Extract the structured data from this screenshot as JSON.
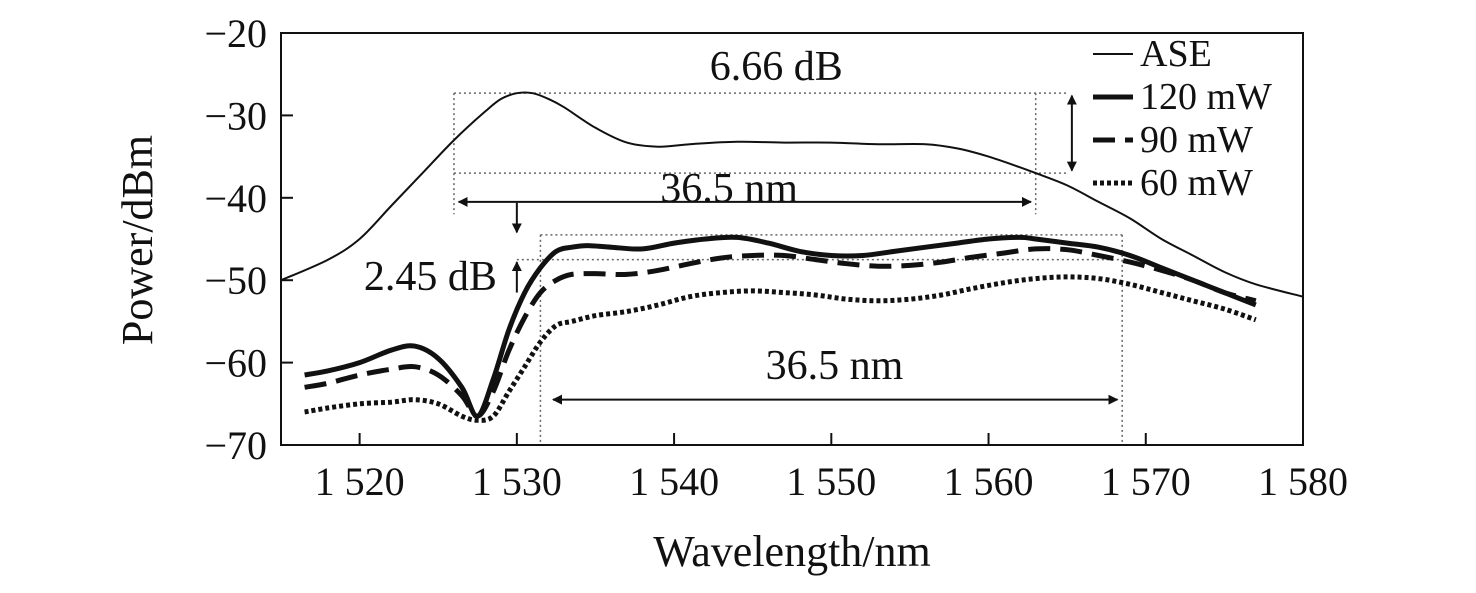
{
  "chart_data": {
    "type": "line",
    "title": "",
    "xlabel": "Wavelength/nm",
    "ylabel": "Power/dBm",
    "xlim": [
      1515,
      1580
    ],
    "ylim": [
      -70,
      -20
    ],
    "xticks": [
      1520,
      1530,
      1540,
      1550,
      1560,
      1570,
      1580
    ],
    "xtick_labels": [
      "1 520",
      "1 530",
      "1 540",
      "1 550",
      "1 560",
      "1 570",
      "1 580"
    ],
    "yticks": [
      -20,
      -30,
      -40,
      -50,
      -60,
      -70
    ],
    "ytick_labels": [
      "−20",
      "−30",
      "−40",
      "−50",
      "−60",
      "−70"
    ],
    "grid": false,
    "legend_position": "top-right",
    "series": [
      {
        "name": "ASE",
        "style": "thin-solid",
        "x": [
          1515,
          1518,
          1520,
          1522,
          1524,
          1526,
          1528,
          1529,
          1530,
          1531,
          1532,
          1533,
          1535,
          1537,
          1539,
          1541,
          1544,
          1547,
          1550,
          1553,
          1556,
          1558,
          1560,
          1562,
          1563,
          1565,
          1567,
          1569,
          1571,
          1573,
          1575,
          1577,
          1580
        ],
        "y": [
          -50,
          -47.5,
          -45,
          -41,
          -37,
          -33,
          -29.5,
          -28,
          -27.3,
          -27.3,
          -28,
          -29,
          -31.5,
          -33.3,
          -33.8,
          -33.5,
          -33.2,
          -33.3,
          -33.3,
          -33.5,
          -33.5,
          -34,
          -35,
          -36.3,
          -37,
          -38.5,
          -40.5,
          -42.5,
          -45,
          -47,
          -49,
          -50.5,
          -52
        ]
      },
      {
        "name": "120 mW",
        "style": "thick-solid",
        "x": [
          1516.5,
          1518,
          1520,
          1522,
          1523.5,
          1525,
          1526.5,
          1527.5,
          1528.5,
          1529.5,
          1530.5,
          1531.5,
          1532.5,
          1533.5,
          1534.5,
          1536,
          1538,
          1540,
          1542,
          1544,
          1546,
          1548,
          1550,
          1552,
          1554,
          1556,
          1558,
          1560,
          1562,
          1563,
          1565,
          1567,
          1569,
          1571,
          1573,
          1575,
          1577
        ],
        "y": [
          -61.5,
          -61,
          -60,
          -58.5,
          -58,
          -59.5,
          -63,
          -66.5,
          -62,
          -56,
          -51.5,
          -48.5,
          -46.5,
          -46,
          -45.8,
          -46,
          -46.2,
          -45.5,
          -45,
          -44.8,
          -45.5,
          -46.5,
          -47,
          -47,
          -46.5,
          -46,
          -45.5,
          -45,
          -44.8,
          -45,
          -45.5,
          -46,
          -47,
          -48.5,
          -50,
          -51.5,
          -53
        ]
      },
      {
        "name": "90 mW",
        "style": "thick-dashed",
        "x": [
          1516.5,
          1518,
          1520,
          1522,
          1523.5,
          1525,
          1526.5,
          1527.5,
          1528.5,
          1529.5,
          1530.5,
          1531.5,
          1532.5,
          1533.5,
          1535,
          1537,
          1539,
          1541,
          1543,
          1545,
          1547,
          1549,
          1551,
          1553,
          1555,
          1557,
          1559,
          1561,
          1563,
          1565,
          1567,
          1569,
          1571,
          1573,
          1575,
          1577
        ],
        "y": [
          -63,
          -62.5,
          -61.5,
          -60.8,
          -60.5,
          -61.5,
          -64,
          -66.5,
          -63.5,
          -58.5,
          -54.5,
          -51.5,
          -50,
          -49.3,
          -49.2,
          -49.3,
          -48.8,
          -48,
          -47.3,
          -47,
          -47,
          -47.5,
          -48,
          -48.3,
          -48.2,
          -47.8,
          -47.2,
          -46.7,
          -46.2,
          -46.3,
          -47,
          -47.8,
          -48.8,
          -50,
          -51.5,
          -52.5
        ]
      },
      {
        "name": "60 mW",
        "style": "dotted",
        "x": [
          1516.5,
          1518,
          1520,
          1522,
          1523.5,
          1525,
          1526.5,
          1527.5,
          1528.5,
          1529.5,
          1530.5,
          1531.5,
          1532.5,
          1533.5,
          1535,
          1537,
          1539,
          1541,
          1543,
          1545,
          1547,
          1549,
          1551,
          1553,
          1555,
          1557,
          1559,
          1561,
          1563,
          1565,
          1567,
          1569,
          1571,
          1573,
          1575,
          1577
        ],
        "y": [
          -66,
          -65.5,
          -65,
          -64.8,
          -64.5,
          -65,
          -66.5,
          -67,
          -66.5,
          -63.5,
          -60.5,
          -57.5,
          -55.5,
          -55,
          -54.3,
          -53.8,
          -53,
          -52,
          -51.5,
          -51.3,
          -51.5,
          -51.8,
          -52.3,
          -52.5,
          -52.3,
          -51.8,
          -51,
          -50.3,
          -49.8,
          -49.6,
          -49.8,
          -50.5,
          -51.5,
          -52.5,
          -53.5,
          -54.8
        ]
      }
    ],
    "annotations": [
      {
        "text": "6.66 dB",
        "x": 1546.5,
        "y": -24
      },
      {
        "text": "36.5 nm",
        "x": 1543.5,
        "y": -38.8
      },
      {
        "text": "2.45 dB",
        "x": 1524.5,
        "y": -49.5
      },
      {
        "text": "36.5 nm",
        "x": 1550.2,
        "y": -60.3
      }
    ]
  }
}
